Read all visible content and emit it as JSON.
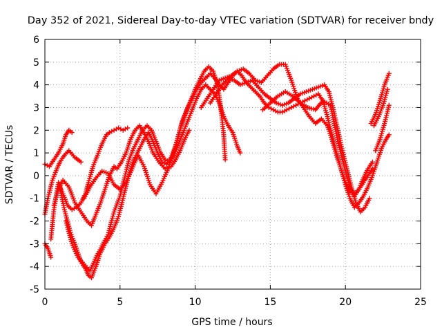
{
  "chart_data": {
    "type": "scatter",
    "title": "Day 352 of 2021, Sidereal Day-to-day VTEC variation (SDTVAR) for receiver bndy",
    "xlabel": "GPS time / hours",
    "ylabel": "SDTVAR / TECUs",
    "xlim": [
      0,
      25
    ],
    "ylim": [
      -5,
      6
    ],
    "xticks": [
      "0",
      "5",
      "10",
      "15",
      "20",
      "25"
    ],
    "yticks": [
      "-5",
      "-4",
      "-3",
      "-2",
      "-1",
      "0",
      "1",
      "2",
      "3",
      "4",
      "5",
      "6"
    ],
    "grid": true,
    "legend": "none",
    "marker": "+",
    "color": "#ff0000",
    "series": [
      {
        "x": [
          0.0,
          0.3,
          0.6,
          0.9,
          1.2,
          1.4,
          1.6,
          1.8
        ],
        "y": [
          0.5,
          0.4,
          0.7,
          1.0,
          1.4,
          1.8,
          2.0,
          1.9
        ]
      },
      {
        "x": [
          0.0,
          0.2,
          0.5,
          0.8,
          1.0,
          1.3,
          1.6,
          2.0,
          2.4
        ],
        "y": [
          -1.7,
          -1.0,
          -0.2,
          0.3,
          0.6,
          0.9,
          1.1,
          0.8,
          0.6
        ]
      },
      {
        "x": [
          0.0,
          0.2,
          0.4
        ],
        "y": [
          -3.0,
          -3.2,
          -3.6
        ]
      },
      {
        "x": [
          0.4,
          0.6,
          0.9,
          1.2,
          1.5,
          1.8,
          2.1,
          2.4,
          2.7,
          2.9,
          3.2,
          3.5,
          3.8,
          4.1,
          4.3,
          4.6,
          4.9,
          5.2,
          5.5
        ],
        "y": [
          -2.8,
          -1.5,
          -0.3,
          -0.8,
          -1.3,
          -1.5,
          -1.4,
          -1.2,
          -0.8,
          -0.3,
          0.4,
          0.9,
          1.4,
          1.8,
          1.9,
          2.0,
          2.1,
          2.0,
          2.1
        ]
      },
      {
        "x": [
          1.0,
          1.3,
          1.7,
          2.1,
          2.4,
          2.7,
          2.9,
          3.1,
          3.4,
          3.7,
          4.0,
          4.3,
          4.6,
          4.9,
          5.2,
          5.5,
          5.8,
          6.0,
          6.3,
          6.6,
          6.9,
          7.2,
          7.5,
          7.8,
          8.1,
          8.4,
          8.7,
          8.9,
          9.1,
          9.4,
          9.7,
          10.0,
          10.3,
          10.6,
          10.9,
          11.2,
          11.5,
          11.7,
          11.9,
          12.0
        ],
        "y": [
          -0.5,
          -1.5,
          -2.5,
          -3.2,
          -3.8,
          -4.1,
          -4.4,
          -4.5,
          -4.0,
          -3.4,
          -3.0,
          -2.7,
          -2.3,
          -1.8,
          -1.0,
          -0.2,
          0.5,
          0.8,
          1.2,
          1.6,
          1.9,
          1.5,
          1.0,
          0.6,
          0.5,
          0.8,
          1.3,
          1.8,
          2.3,
          2.8,
          3.3,
          3.8,
          4.2,
          4.6,
          4.8,
          4.6,
          4.0,
          3.0,
          1.8,
          0.7
        ]
      },
      {
        "x": [
          0.6,
          0.9,
          1.2,
          1.6,
          2.0,
          2.4,
          2.8,
          3.1,
          3.4,
          3.7,
          4.0,
          4.3,
          4.6,
          4.8,
          5.1,
          5.4,
          5.7,
          6.0,
          6.3,
          6.6,
          6.9,
          7.2,
          7.6,
          8.0,
          8.4,
          8.7,
          9.0,
          9.3,
          9.6
        ],
        "y": [
          -1.3,
          -0.6,
          -0.2,
          -0.5,
          -1.2,
          -1.6,
          -2.0,
          -2.2,
          -1.7,
          -1.2,
          -0.6,
          0.0,
          0.4,
          0.3,
          0.6,
          1.0,
          1.6,
          2.0,
          2.2,
          1.9,
          1.5,
          1.0,
          0.6,
          0.3,
          0.4,
          0.7,
          1.1,
          1.6,
          2.0
        ]
      },
      {
        "x": [
          1.4,
          1.8,
          2.2,
          2.6,
          3.0,
          3.4,
          3.8,
          4.2,
          4.6,
          5.0,
          5.3,
          5.6,
          5.9,
          6.2,
          6.5,
          6.8,
          7.1,
          7.4,
          7.7,
          8.0,
          8.3,
          8.6,
          8.9,
          9.2,
          9.5,
          9.8,
          10.1,
          10.4,
          10.7,
          11.0,
          11.3,
          11.6,
          11.9,
          12.2,
          12.5,
          12.8,
          13.0
        ],
        "y": [
          -2.0,
          -3.0,
          -3.6,
          -3.9,
          -4.2,
          -3.6,
          -3.1,
          -2.6,
          -1.6,
          -0.9,
          -0.1,
          0.7,
          1.2,
          1.6,
          2.0,
          2.2,
          2.0,
          1.5,
          1.0,
          0.7,
          0.6,
          0.9,
          1.4,
          1.9,
          2.4,
          2.9,
          3.4,
          3.8,
          4.0,
          3.8,
          3.6,
          3.2,
          2.6,
          2.2,
          1.9,
          1.3,
          1.0
        ]
      },
      {
        "x": [
          2.6,
          3.0,
          3.4,
          3.8,
          4.2,
          4.6,
          5.0,
          5.4,
          5.8,
          6.2,
          6.6,
          7.0,
          7.4,
          7.8,
          8.2,
          8.6,
          8.9,
          9.2,
          9.5,
          9.8,
          10.1,
          10.4,
          10.7,
          11.0,
          11.3,
          11.6,
          11.9,
          12.2,
          12.5,
          12.8,
          13.1,
          13.4,
          13.7,
          14.0,
          14.3,
          14.6,
          14.9,
          15.2,
          15.5,
          15.8,
          16.1,
          16.4,
          16.7,
          17.0,
          17.3,
          17.6,
          17.9,
          18.2,
          18.5,
          18.8,
          19.1,
          19.4,
          19.7,
          20.0,
          20.3,
          20.6,
          20.9,
          21.2,
          21.5,
          21.8
        ],
        "y": [
          -1.0,
          -0.5,
          -0.1,
          0.2,
          0.1,
          -0.4,
          -0.6,
          -0.3,
          0.3,
          0.9,
          0.4,
          -0.4,
          -0.8,
          -0.3,
          0.3,
          1.1,
          1.8,
          2.5,
          3.0,
          3.4,
          3.8,
          4.1,
          4.3,
          4.5,
          4.3,
          4.0,
          3.8,
          4.1,
          4.4,
          4.6,
          4.4,
          4.1,
          3.9,
          3.7,
          3.5,
          3.2,
          3.0,
          2.9,
          2.8,
          2.8,
          2.9,
          3.0,
          3.1,
          3.2,
          3.3,
          3.4,
          3.5,
          3.6,
          3.3,
          2.6,
          1.8,
          1.0,
          0.3,
          -0.3,
          -0.7,
          -0.8,
          -0.6,
          -0.3,
          0.0,
          0.3
        ]
      },
      {
        "x": [
          10.4,
          10.8,
          11.2,
          11.6,
          12.0,
          12.4,
          12.8,
          13.2,
          13.6,
          14.0,
          14.4,
          14.8,
          15.2,
          15.6,
          16.0,
          16.4,
          16.8,
          17.2,
          17.6,
          18.0,
          18.4,
          18.8,
          19.1,
          19.4,
          19.7,
          20.0,
          20.3,
          20.6,
          20.9,
          21.2,
          21.5,
          21.8,
          22.1,
          22.4,
          22.7,
          22.9
        ],
        "y": [
          3.0,
          3.4,
          3.8,
          4.2,
          4.3,
          4.4,
          4.6,
          4.7,
          4.5,
          4.2,
          4.1,
          4.4,
          4.7,
          4.9,
          4.9,
          4.2,
          3.4,
          3.0,
          2.6,
          2.3,
          2.5,
          2.2,
          1.6,
          0.9,
          0.3,
          -0.4,
          -1.0,
          -1.4,
          -1.2,
          -0.9,
          -0.5,
          0.0,
          0.6,
          1.2,
          1.6,
          1.8
        ]
      },
      {
        "x": [
          11.0,
          11.4,
          11.8,
          12.2,
          12.6,
          13.0,
          13.4,
          13.8,
          14.2,
          14.6,
          15.0,
          15.4,
          15.8,
          16.2,
          16.6,
          17.0,
          17.4,
          17.8,
          18.2,
          18.6,
          18.9,
          19.2,
          19.5,
          19.8,
          20.1,
          20.4,
          20.7,
          21.0,
          21.3,
          21.6
        ],
        "y": [
          3.2,
          3.6,
          4.0,
          4.3,
          4.2,
          4.0,
          4.1,
          4.2,
          3.9,
          3.6,
          3.4,
          3.2,
          3.1,
          3.2,
          3.4,
          3.6,
          3.7,
          3.8,
          3.9,
          4.0,
          3.7,
          2.9,
          2.0,
          1.1,
          0.3,
          -0.5,
          -1.2,
          -1.6,
          -1.4,
          -1.0
        ]
      },
      {
        "x": [
          14.5,
          15.0,
          15.5,
          16.0,
          16.5,
          17.0,
          17.5,
          18.0,
          18.5,
          19.0,
          19.5,
          20.0,
          20.3,
          20.6,
          20.9,
          21.2,
          21.5,
          21.8
        ],
        "y": [
          2.9,
          3.2,
          3.5,
          3.7,
          3.5,
          3.2,
          3.0,
          2.9,
          3.3,
          3.1,
          1.5,
          0.2,
          -0.5,
          -0.9,
          -0.6,
          -0.1,
          0.3,
          0.6
        ]
      },
      {
        "x": [
          21.7,
          22.0,
          22.3,
          22.6,
          22.9
        ],
        "y": [
          2.3,
          2.7,
          3.3,
          4.0,
          4.5
        ]
      },
      {
        "x": [
          21.9,
          22.2,
          22.5,
          22.8
        ],
        "y": [
          2.2,
          2.6,
          3.1,
          3.8
        ]
      },
      {
        "x": [
          22.0,
          22.3,
          22.6,
          22.9
        ],
        "y": [
          1.1,
          1.6,
          2.3,
          3.1
        ]
      }
    ]
  }
}
